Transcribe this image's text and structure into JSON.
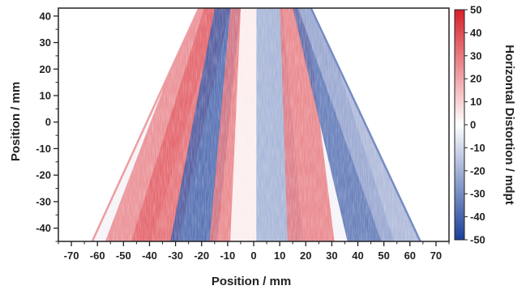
{
  "chart_data": {
    "type": "heatmap",
    "xlabel": "Position / mm",
    "ylabel": "Position / mm",
    "colorbar_label": "Horizontal Distortion / mdpt",
    "xlim": [
      -75,
      75
    ],
    "ylim": [
      -45,
      43
    ],
    "xticks": [
      -70,
      -60,
      -50,
      -40,
      -30,
      -20,
      -10,
      0,
      10,
      20,
      30,
      40,
      50,
      60,
      70
    ],
    "yticks": [
      40,
      30,
      20,
      10,
      0,
      -10,
      -20,
      -30,
      -40
    ],
    "colorbar_range": [
      -50,
      50
    ],
    "colorbar_ticks": [
      50,
      40,
      30,
      20,
      10,
      0,
      -10,
      -20,
      -30,
      -40,
      -50
    ],
    "colormap": [
      "#1b3f99",
      "#ffffff",
      "#d8202a"
    ],
    "region": {
      "shape": "trapezoid",
      "top_y": 43,
      "bottom_y": -45,
      "top_x_range": [
        -21,
        22
      ],
      "bottom_x_range": [
        -62,
        64
      ]
    },
    "bands": [
      {
        "x_at_bottom": -48,
        "x_at_top": -18,
        "value": 28
      },
      {
        "x_at_bottom": -38,
        "x_at_top": -14,
        "value": 35
      },
      {
        "x_at_bottom": -23,
        "x_at_top": -10,
        "value": -42
      },
      {
        "x_at_bottom": -8,
        "x_at_top": -4,
        "value": 30
      },
      {
        "x_at_bottom": 0,
        "x_at_top": 0,
        "value": 0
      },
      {
        "x_at_bottom": 10,
        "x_at_top": 6,
        "value": -22
      },
      {
        "x_at_bottom": 22,
        "x_at_top": 15,
        "value": 30
      },
      {
        "x_at_bottom": 45,
        "x_at_top": 20,
        "value": -38
      },
      {
        "x_at_bottom": 58,
        "x_at_top": 22,
        "value": -20
      }
    ],
    "grid": false
  }
}
